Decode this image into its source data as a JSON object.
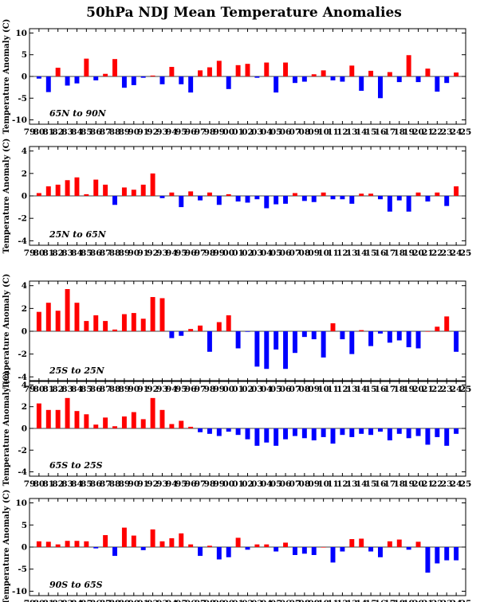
{
  "title": "50hPa NDJ Mean Temperature Anomalies",
  "colors": {
    "positive": "#ff0000",
    "negative": "#0000ff",
    "axis": "#000000"
  },
  "chart_data": [
    {
      "type": "bar",
      "region_label": "65N to 90N",
      "ylabel": "Temperature Anomaly (C)",
      "ylim": [
        -11,
        11
      ],
      "yticks": [
        -10,
        -5,
        0,
        5,
        10
      ],
      "categories": [
        "79",
        "80",
        "81",
        "82",
        "83",
        "84",
        "85",
        "86",
        "87",
        "88",
        "89",
        "90",
        "91",
        "92",
        "93",
        "94",
        "95",
        "96",
        "97",
        "98",
        "99",
        "00",
        "01",
        "02",
        "03",
        "04",
        "05",
        "06",
        "07",
        "08",
        "09",
        "10",
        "11",
        "12",
        "13",
        "14",
        "15",
        "16",
        "17",
        "18",
        "19",
        "20",
        "21",
        "22",
        "23",
        "24",
        "25"
      ],
      "values": [
        null,
        -0.5,
        -3.6,
        2.0,
        -2.1,
        -1.6,
        4.1,
        -0.9,
        0.6,
        4.0,
        -2.6,
        -2.0,
        -0.3,
        0.2,
        -1.8,
        2.2,
        -1.8,
        -3.7,
        1.4,
        2.1,
        3.6,
        -2.9,
        2.6,
        2.9,
        -0.3,
        3.2,
        -3.7,
        3.2,
        -1.5,
        -1.2,
        0.5,
        1.4,
        -0.9,
        -1.2,
        2.5,
        -3.3,
        1.3,
        -5.0,
        1.0,
        -1.3,
        4.9,
        -1.3,
        1.8,
        -3.5,
        -1.5,
        0.9,
        null
      ]
    },
    {
      "type": "bar",
      "region_label": "25N to 65N",
      "ylabel": "Temperature Anomaly (C)",
      "ylim": [
        -4.4,
        4.4
      ],
      "yticks": [
        -4,
        -2,
        0,
        2,
        4
      ],
      "categories": [
        "79",
        "80",
        "81",
        "82",
        "83",
        "84",
        "85",
        "86",
        "87",
        "88",
        "89",
        "90",
        "91",
        "92",
        "93",
        "94",
        "95",
        "96",
        "97",
        "98",
        "99",
        "00",
        "01",
        "02",
        "03",
        "04",
        "05",
        "06",
        "07",
        "08",
        "09",
        "10",
        "11",
        "12",
        "13",
        "14",
        "15",
        "16",
        "17",
        "18",
        "19",
        "20",
        "21",
        "22",
        "23",
        "24",
        "25"
      ],
      "values": [
        null,
        0.25,
        0.85,
        1.0,
        1.4,
        1.65,
        0.15,
        1.45,
        1.0,
        -0.8,
        0.75,
        0.55,
        1.0,
        2.0,
        -0.2,
        0.3,
        -1.0,
        0.4,
        -0.4,
        0.3,
        -0.8,
        0.15,
        -0.5,
        -0.6,
        -0.3,
        -1.1,
        -0.75,
        -0.7,
        0.25,
        -0.45,
        -0.55,
        0.3,
        -0.3,
        -0.3,
        -0.7,
        0.2,
        0.2,
        -0.3,
        -1.4,
        -0.4,
        -1.4,
        0.3,
        -0.5,
        0.3,
        -0.9,
        0.85,
        null
      ]
    },
    {
      "type": "bar",
      "region_label": "25S to 25N",
      "ylabel": "Temperature Anomaly (C)",
      "ylim": [
        -4.4,
        4.4
      ],
      "yticks": [
        -4,
        -2,
        0,
        2,
        4
      ],
      "categories": [
        "79",
        "80",
        "81",
        "82",
        "83",
        "84",
        "85",
        "86",
        "87",
        "88",
        "89",
        "90",
        "91",
        "92",
        "93",
        "94",
        "95",
        "96",
        "97",
        "98",
        "99",
        "00",
        "01",
        "02",
        "03",
        "04",
        "05",
        "06",
        "07",
        "08",
        "09",
        "10",
        "11",
        "12",
        "13",
        "14",
        "15",
        "16",
        "17",
        "18",
        "19",
        "20",
        "21",
        "22",
        "23",
        "24",
        "25"
      ],
      "values": [
        null,
        1.7,
        2.5,
        1.8,
        3.7,
        2.5,
        0.9,
        1.4,
        0.9,
        0.15,
        1.5,
        1.6,
        1.1,
        3.0,
        2.9,
        -0.6,
        -0.4,
        0.2,
        0.5,
        -1.8,
        0.8,
        1.4,
        -1.5,
        -0.05,
        -3.1,
        -3.3,
        -1.6,
        -3.3,
        -1.9,
        -0.5,
        -0.7,
        -2.3,
        0.7,
        -0.7,
        -2.0,
        0.1,
        -1.3,
        -0.2,
        -1.0,
        -0.8,
        -1.4,
        -1.5,
        0.0,
        0.4,
        1.3,
        -1.8,
        null
      ]
    },
    {
      "type": "bar",
      "region_label": "65S to 25S",
      "ylabel": "Temperature Anomaly (C)",
      "ylim": [
        -4.4,
        4.4
      ],
      "yticks": [
        -4,
        -2,
        0,
        2,
        4
      ],
      "categories": [
        "79",
        "80",
        "81",
        "82",
        "83",
        "84",
        "85",
        "86",
        "87",
        "88",
        "89",
        "90",
        "91",
        "92",
        "93",
        "94",
        "95",
        "96",
        "97",
        "98",
        "99",
        "00",
        "01",
        "02",
        "03",
        "04",
        "05",
        "06",
        "07",
        "08",
        "09",
        "10",
        "11",
        "12",
        "13",
        "14",
        "15",
        "16",
        "17",
        "18",
        "19",
        "20",
        "21",
        "22",
        "23",
        "24",
        "25"
      ],
      "values": [
        null,
        2.3,
        1.7,
        1.7,
        2.8,
        1.6,
        1.3,
        0.35,
        1.0,
        0.2,
        1.1,
        1.5,
        0.85,
        2.8,
        1.7,
        0.4,
        0.7,
        0.15,
        -0.35,
        -0.5,
        -0.7,
        -0.3,
        -0.6,
        -1.0,
        -1.6,
        -1.3,
        -1.6,
        -1.0,
        -0.7,
        -0.9,
        -1.1,
        -0.8,
        -1.4,
        -0.6,
        -0.8,
        -0.5,
        -0.6,
        -0.3,
        -1.1,
        -0.5,
        -0.9,
        -0.7,
        -1.5,
        -0.8,
        -1.6,
        -0.5,
        null
      ]
    },
    {
      "type": "bar",
      "region_label": "90S to 65S",
      "ylabel": "Temperature Anomaly (C)",
      "ylim": [
        -11,
        11
      ],
      "yticks": [
        -10,
        -5,
        0,
        5,
        10
      ],
      "categories": [
        "79",
        "80",
        "81",
        "82",
        "83",
        "84",
        "85",
        "86",
        "87",
        "88",
        "89",
        "90",
        "91",
        "92",
        "93",
        "94",
        "95",
        "96",
        "97",
        "98",
        "99",
        "00",
        "01",
        "02",
        "03",
        "04",
        "05",
        "06",
        "07",
        "08",
        "09",
        "10",
        "11",
        "12",
        "13",
        "14",
        "15",
        "16",
        "17",
        "18",
        "19",
        "20",
        "21",
        "22",
        "23",
        "24",
        "25"
      ],
      "values": [
        null,
        1.3,
        1.2,
        0.6,
        1.4,
        1.4,
        1.3,
        -0.3,
        2.7,
        -2.0,
        4.4,
        2.6,
        -0.7,
        4.0,
        1.3,
        2.0,
        3.1,
        0.6,
        -2.0,
        0.3,
        -2.8,
        -2.3,
        2.1,
        -0.6,
        0.6,
        0.6,
        -1.0,
        1.0,
        -1.8,
        -1.5,
        -1.8,
        0.0,
        -3.5,
        -1.0,
        1.8,
        1.9,
        -1.0,
        -2.3,
        1.3,
        1.7,
        -0.6,
        1.2,
        -5.8,
        -3.7,
        -3.0,
        -3.0,
        null
      ]
    }
  ]
}
